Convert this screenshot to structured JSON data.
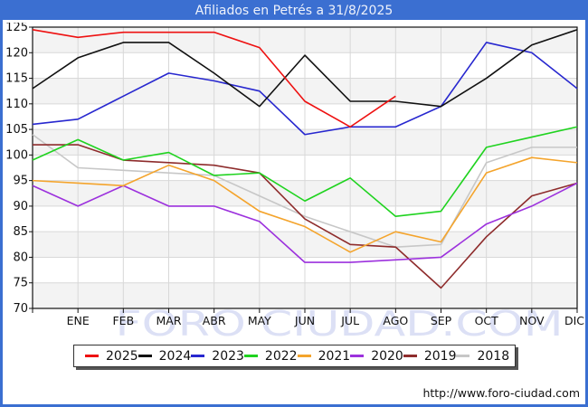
{
  "window": {
    "title": "Afiliados en Petrés a 31/8/2025"
  },
  "footer": {
    "link_text": "http://www.foro-ciudad.com"
  },
  "watermark_text": "FORO CIUDAD.COM",
  "theme": {
    "frame_blue": "#3b6fd1",
    "title_text_color": "#eef2fb",
    "plot_border": "#111111",
    "grid_line": "#d8d8d8",
    "band_fill": "#f3f3f3",
    "watermark_color": "#dce0f5",
    "axis_text": "#111111",
    "legend_border": "#333333",
    "legend_shadow": "#555555"
  },
  "chart_data": {
    "type": "line",
    "title": "Afiliados en Petrés a 31/8/2025",
    "x_tick_labels": [
      "ENE",
      "FEB",
      "MAR",
      "ABR",
      "MAY",
      "JUN",
      "JUL",
      "AGO",
      "SEP",
      "OCT",
      "NOV",
      "DIC"
    ],
    "points_per_series": 13,
    "first_point_unlabeled_at_axis": true,
    "ylim": [
      70,
      125
    ],
    "y_ticks": [
      70,
      75,
      80,
      85,
      90,
      95,
      100,
      105,
      110,
      115,
      120,
      125
    ],
    "grid": true,
    "alternating_bands": true,
    "legend_position": "bottom",
    "series": [
      {
        "name": "2025",
        "color": "#ee1111",
        "values": [
          124.5,
          123,
          124,
          124,
          124,
          121,
          110.5,
          105.5,
          111.5
        ]
      },
      {
        "name": "2024",
        "color": "#111111",
        "values": [
          113,
          119,
          122,
          122,
          116,
          109.5,
          119.5,
          110.5,
          110.5,
          109.5,
          115,
          121.5,
          124.5
        ]
      },
      {
        "name": "2023",
        "color": "#2727cf",
        "values": [
          106,
          107,
          111.5,
          116,
          114.5,
          112.5,
          104,
          105.5,
          105.5,
          109.5,
          122,
          120,
          113
        ]
      },
      {
        "name": "2022",
        "color": "#1fd31f",
        "values": [
          99,
          103,
          99,
          100.5,
          96,
          96.5,
          91,
          95.5,
          88,
          89,
          101.5,
          103.5,
          105.5
        ]
      },
      {
        "name": "2021",
        "color": "#f4a42c",
        "values": [
          95,
          94.5,
          94,
          98,
          95,
          89,
          86,
          81,
          85,
          83,
          96.5,
          99.5,
          98.5
        ]
      },
      {
        "name": "2020",
        "color": "#9c31dd",
        "values": [
          94,
          90,
          94,
          90,
          90,
          87,
          79,
          79,
          79.5,
          80,
          86.5,
          90,
          94.5
        ]
      },
      {
        "name": "2019",
        "color": "#8e2c2c",
        "values": [
          102,
          102,
          99,
          98.5,
          98,
          96.5,
          87.5,
          82.5,
          82,
          74,
          84,
          92,
          94.5
        ]
      },
      {
        "name": "2018",
        "color": "#c7c7c7",
        "values": [
          104,
          97.5,
          97,
          96.5,
          96,
          92,
          88,
          85,
          82,
          82.5,
          98.5,
          101.5,
          101.5
        ]
      }
    ]
  }
}
